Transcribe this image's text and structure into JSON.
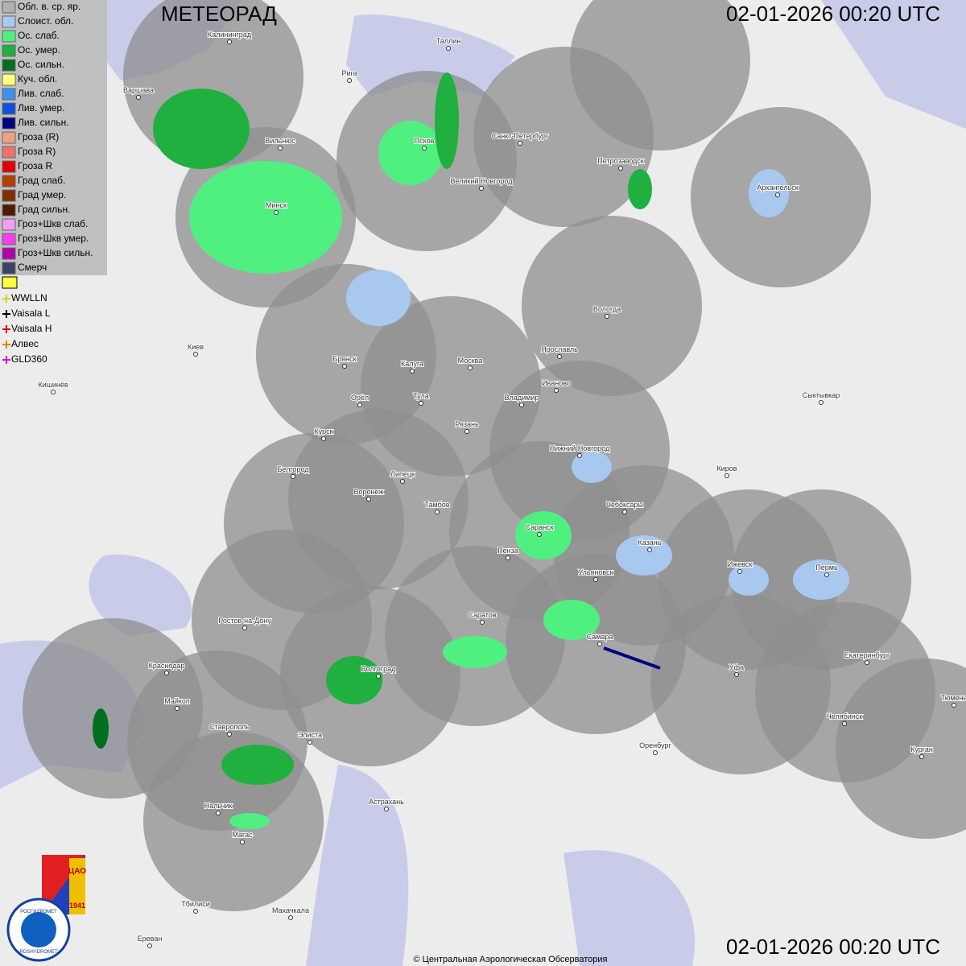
{
  "header": {
    "title": "МЕТЕОРАД",
    "timestamp_top": "02-01-2026  00:20 UTC",
    "timestamp_bottom": "02-01-2026  00:20 UTC"
  },
  "legend": {
    "items": [
      {
        "label": "Обл. в. ср. яр.",
        "color": "#b0b0b0"
      },
      {
        "label": "Слоист. обл.",
        "color": "#a8c8f0"
      },
      {
        "label": "Ос. слаб.",
        "color": "#50f080"
      },
      {
        "label": "Ос. умер.",
        "color": "#20b040"
      },
      {
        "label": "Ос. сильн.",
        "color": "#007020"
      },
      {
        "label": "Куч. обл.",
        "color": "#ffff80"
      },
      {
        "label": "Лив. слаб.",
        "color": "#4090f0"
      },
      {
        "label": "Лив. умер.",
        "color": "#1050e0"
      },
      {
        "label": "Лив. сильн.",
        "color": "#000080"
      },
      {
        "label": "Гроза (R)",
        "color": "#f0a080"
      },
      {
        "label": "Гроза R)",
        "color": "#f07070"
      },
      {
        "label": "Гроза R",
        "color": "#e00000"
      },
      {
        "label": "Град слаб.",
        "color": "#b04000"
      },
      {
        "label": "Град умер.",
        "color": "#803000"
      },
      {
        "label": "Град сильн.",
        "color": "#501800"
      },
      {
        "label": "Гроз+Шкв слаб.",
        "color": "#f0a0f0"
      },
      {
        "label": "Гроз+Шкв умер.",
        "color": "#f040f0"
      },
      {
        "label": "Гроз+Шкв сильн.",
        "color": "#b000b0"
      },
      {
        "label": "Смерч",
        "color": "#404060"
      }
    ],
    "lightning": [
      {
        "label": "WWLLN",
        "color": "#e0d000"
      },
      {
        "label": "Vaisala L",
        "color": "#000000"
      },
      {
        "label": "Vaisala H",
        "color": "#e00000"
      },
      {
        "label": "Алвес",
        "color": "#f08000"
      },
      {
        "label": "GLD360",
        "color": "#e000e0"
      }
    ]
  },
  "cities": [
    "Калининград",
    "Таллин",
    "Рига",
    "Варшава",
    "Вильнюс",
    "Псков",
    "Санкт-Петербург",
    "Великий Новгород",
    "Петрозаводск",
    "Архангельск",
    "Минск",
    "Вологда",
    "Киев",
    "Брянск",
    "Калуга",
    "Москва",
    "Ярославль",
    "Иваново",
    "Кишинёв",
    "Орёл",
    "Тула",
    "Владимир",
    "Сыктывкар",
    "Рязань",
    "Курск",
    "Нижний Новгород",
    "Киров",
    "Белгород",
    "Липецк",
    "Воронеж",
    "Тамбов",
    "Чебоксары",
    "Саранск",
    "Казань",
    "Пенза",
    "Ижевск",
    "Пермь",
    "Ульяновск",
    "Ростов-на-Дону",
    "Саратов",
    "Самара",
    "Краснодар",
    "Уфа",
    "Екатеринбург",
    "Волгоград",
    "Майкоп",
    "Челябинск",
    "Ставрополь",
    "Элиста",
    "Оренбург",
    "Курган",
    "Тюмень",
    "Астрахань",
    "Нальчик",
    "Магас",
    "Тбилиси",
    "Махачкала",
    "Ереван"
  ],
  "logo": {
    "left": "РОСГИДРОМЕТ",
    "bottom": "ROSHYDROMET",
    "org": "ЦАО",
    "year": "1941"
  },
  "footer": {
    "copyright": "© Центральная Аэрологическая Обсерватория"
  }
}
